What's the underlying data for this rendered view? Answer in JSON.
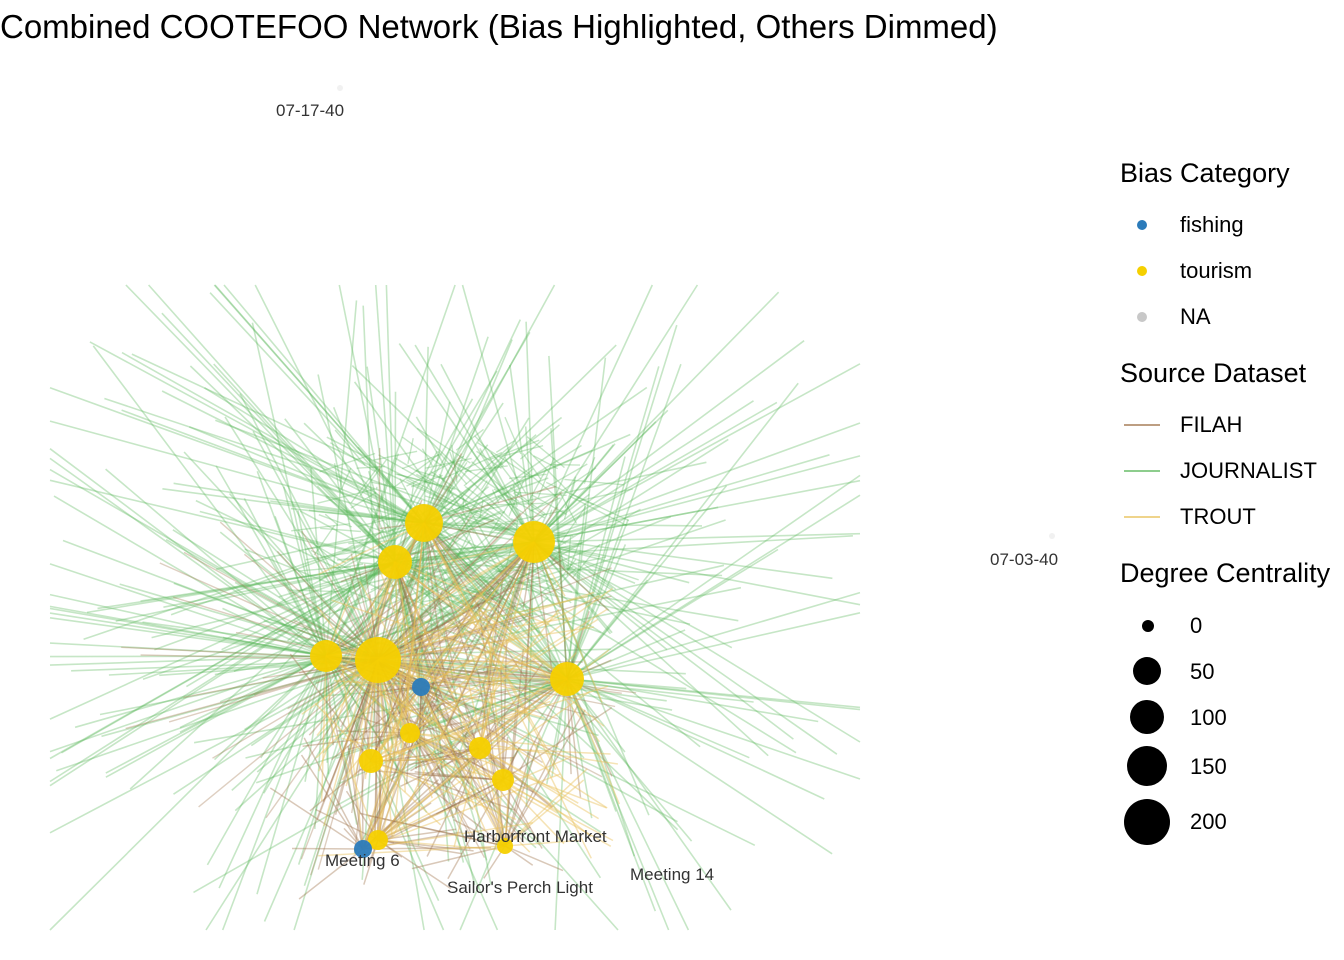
{
  "title": "Combined COOTEFOO Network (Bias Highlighted, Others Dimmed)",
  "legend": {
    "bias_title": "Bias Category",
    "bias": [
      {
        "label": "fishing",
        "color": "#2b7bba"
      },
      {
        "label": "tourism",
        "color": "#f5d000"
      },
      {
        "label": "NA",
        "color": "#c8c8c8"
      }
    ],
    "source_title": "Source Dataset",
    "source": [
      {
        "label": "FILAH",
        "color": "#a1754d"
      },
      {
        "label": "JOURNALIST",
        "color": "#5cb85c"
      },
      {
        "label": "TROUT",
        "color": "#e8c25a"
      }
    ],
    "degree_title": "Degree Centrality",
    "degree": [
      "0",
      "50",
      "100",
      "150",
      "200"
    ]
  },
  "node_labels": {
    "n1": "07-17-40",
    "n2": "07-03-40",
    "n3": "Meeting 6",
    "n4": "Harborfront Market",
    "n5": "Sailor's Perch Light",
    "n6": "Meeting 14"
  },
  "colors": {
    "journalist_edge": "#5cb85c",
    "filah_edge": "#a1754d",
    "trout_edge": "#e8c25a",
    "tourism_node": "#f5d000",
    "fishing_node": "#2b7bba"
  }
}
